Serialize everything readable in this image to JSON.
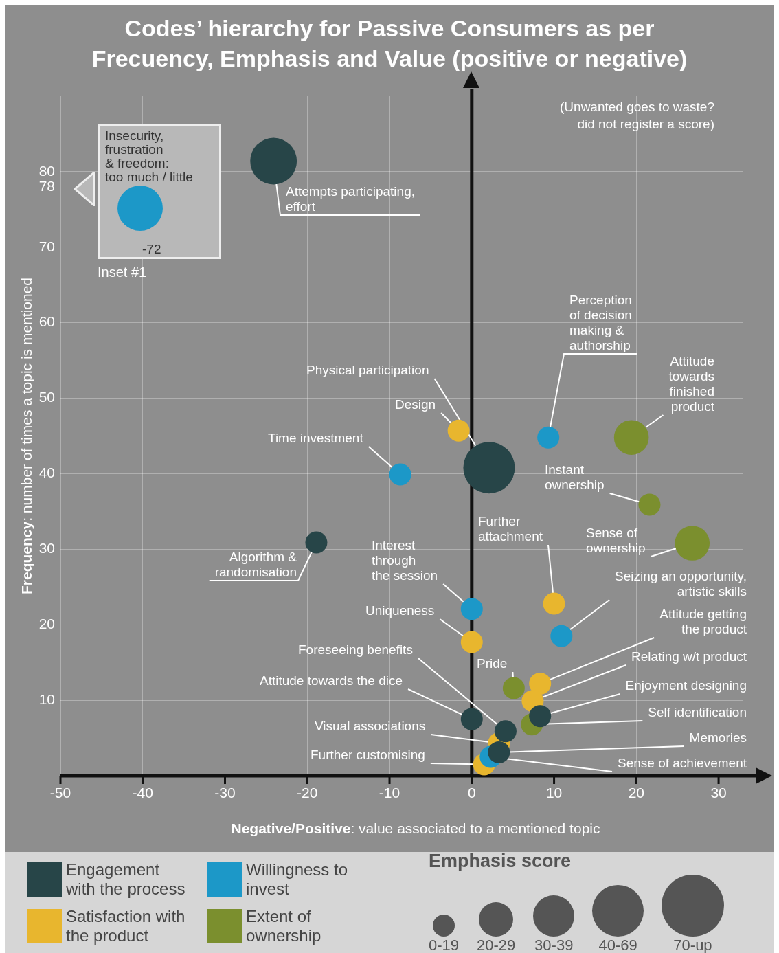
{
  "chart_data": {
    "type": "bubble",
    "title": "Codes’ hierarchy for Passive Consumers as per\nFrecuency, Emphasis and Value (positive or negative)",
    "xlabel": "Negative/Positive: value associated to a mentioned topic",
    "ylabel": "Frequency: number of times a topic is mentioned",
    "legend_title": "Emphasis score",
    "xlim": [
      -50,
      33
    ],
    "xticks": [
      -50,
      -40,
      -30,
      -20,
      -10,
      0,
      10,
      20,
      30
    ],
    "ylim": [
      0,
      90
    ],
    "yticks": [
      10,
      20,
      30,
      40,
      50,
      60,
      70,
      78,
      80
    ],
    "grid": true,
    "legend": "bottom",
    "ref_lines": [
      {
        "axis": "x",
        "value": 0,
        "color": "#111111"
      }
    ],
    "size_legend": [
      {
        "value": 10,
        "label": "0-19"
      },
      {
        "value": 25,
        "label": "20-29"
      },
      {
        "value": 35,
        "label": "30-39"
      },
      {
        "value": 55,
        "label": "40-69"
      },
      {
        "value": 80,
        "label": "70-up"
      }
    ],
    "series": [
      {
        "name": "Engagement with the process",
        "color": "#274548",
        "x": [
          -24.1,
          2.1,
          -18.9,
          0,
          4.1,
          8.3,
          3.3
        ],
        "values": [
          81.4,
          40.8,
          30.9,
          7.5,
          5.9,
          7.9,
          3.1
        ],
        "sizes": [
          45,
          55,
          10,
          10,
          10,
          10,
          10
        ]
      },
      {
        "name": "Willingness to invest",
        "color": "#1c98c8",
        "x": [
          -8.7,
          9.3,
          0,
          10.9,
          2.3
        ],
        "values": [
          39.9,
          44.8,
          22.1,
          18.5,
          2.5
        ],
        "sizes": [
          10,
          10,
          10,
          10,
          10
        ]
      },
      {
        "name": "Satisfaction with the product",
        "color": "#e8b62e",
        "x": [
          -1.6,
          10,
          0,
          8.3,
          7.4,
          3.3,
          1.5
        ],
        "values": [
          45.7,
          22.8,
          17.7,
          12.2,
          9.9,
          4.3,
          1.5
        ],
        "sizes": [
          10,
          10,
          10,
          10,
          10,
          10,
          10
        ]
      },
      {
        "name": "Extent of ownership",
        "color": "#7b8f2e",
        "x": [
          19.4,
          21.6,
          26.8,
          5.1,
          7.3
        ],
        "values": [
          44.8,
          35.9,
          30.8,
          11.6,
          6.8
        ],
        "sizes": [
          25,
          10,
          25,
          10,
          10
        ]
      }
    ],
    "annotations": [
      {
        "text": "Attempts participating,\neffort",
        "x": -24.1,
        "y": 81.4
      },
      {
        "text": "Physical participation",
        "x": 2.1,
        "y": 40.8
      },
      {
        "text": "Algorithm &\nrandomisation",
        "x": -18.9,
        "y": 30.9
      },
      {
        "text": "Attitude towards the dice",
        "x": 0,
        "y": 7.5
      },
      {
        "text": "Foreseeing benefits",
        "x": 4.1,
        "y": 5.9
      },
      {
        "text": "Enjoyment designing",
        "x": 8.3,
        "y": 7.9
      },
      {
        "text": "Memories",
        "x": 3.3,
        "y": 3.1
      },
      {
        "text": "Time investment",
        "x": -8.7,
        "y": 39.9
      },
      {
        "text": "Perception\nof decision\nmaking &\nauthorship",
        "x": 9.3,
        "y": 44.8
      },
      {
        "text": "Interest\nthrough\nthe session",
        "x": 0,
        "y": 22.1
      },
      {
        "text": "Seizing an opportunity,\nartistic skills",
        "x": 10.9,
        "y": 18.5
      },
      {
        "text": "Sense of achievement",
        "x": 2.3,
        "y": 2.5
      },
      {
        "text": "Design",
        "x": -1.6,
        "y": 45.7
      },
      {
        "text": "Further\nattachment",
        "x": 10,
        "y": 22.8
      },
      {
        "text": "Uniqueness",
        "x": 0,
        "y": 17.7
      },
      {
        "text": "Attitude getting\nthe product",
        "x": 8.3,
        "y": 12.2
      },
      {
        "text": "Relating w/t product",
        "x": 7.4,
        "y": 9.9
      },
      {
        "text": "Visual associations",
        "x": 3.3,
        "y": 4.3
      },
      {
        "text": "Further customising",
        "x": 1.5,
        "y": 1.5
      },
      {
        "text": "Attitude\ntowards\nfinished\nproduct",
        "x": 19.4,
        "y": 44.8
      },
      {
        "text": "Instant\nownership",
        "x": 21.6,
        "y": 35.9
      },
      {
        "text": "Sense of\nownership",
        "x": 26.8,
        "y": 30.8
      },
      {
        "text": "Pride",
        "x": 5.1,
        "y": 11.6
      },
      {
        "text": "Self identification",
        "x": 7.3,
        "y": 6.8
      },
      "Insecurity,\nfrustration\n& freedom:\ntoo much / little",
      "-72",
      "Inset #1",
      "(Unwanted goes to waste?\ndid not register a score)"
    ]
  }
}
